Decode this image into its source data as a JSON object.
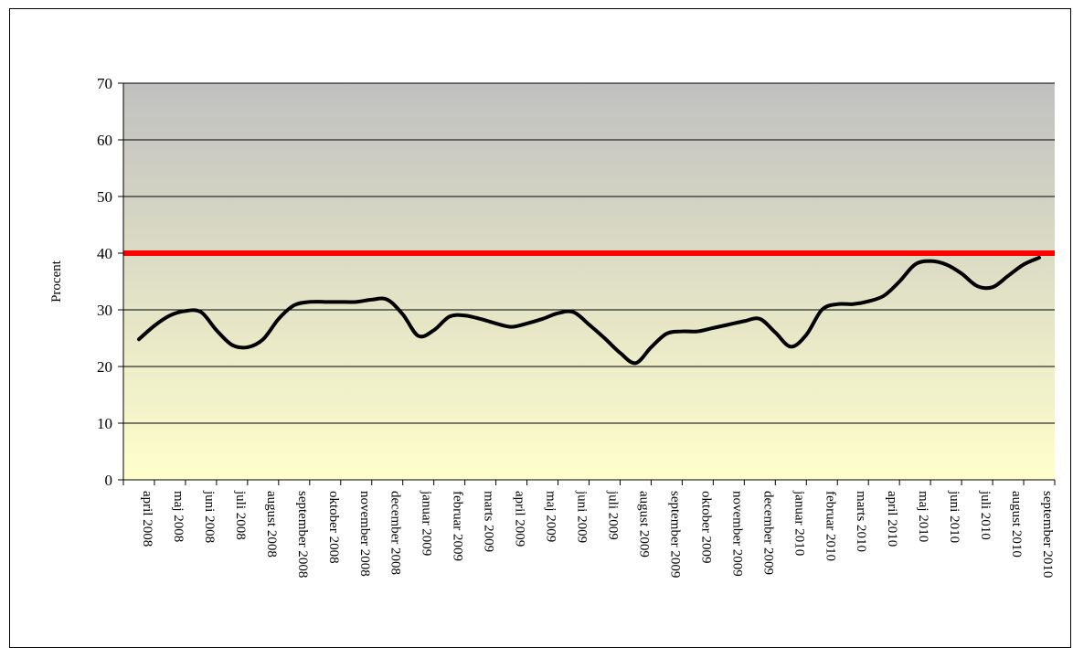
{
  "chart_data": {
    "type": "line",
    "title": "",
    "ylabel": "Procent",
    "xlabel": "",
    "ylim": [
      0,
      70
    ],
    "yticks": [
      0,
      10,
      20,
      30,
      40,
      50,
      60,
      70
    ],
    "grid": true,
    "categories": [
      "april 2008",
      "maj 2008",
      "juni 2008",
      "juli 2008",
      "august 2008",
      "september 2008",
      "oktober 2008",
      "november 2008",
      "december 2008",
      "januar 2009",
      "februar 2009",
      "marts 2009",
      "april 2009",
      "maj 2009",
      "juni 2009",
      "juli 2009",
      "august 2009",
      "september 2009",
      "oktober 2009",
      "november 2009",
      "december 2009",
      "januar 2010",
      "februar 2010",
      "marts 2010",
      "april 2010",
      "maj 2010",
      "juni 2010",
      "juli 2010",
      "august 2010",
      "september 2010"
    ],
    "series": [
      {
        "x": [
          0,
          0.5,
          1,
          1.5,
          2,
          2.5,
          3,
          3.5,
          4,
          4.5,
          5,
          5.5,
          6,
          6.5,
          7,
          7.5,
          8,
          8.5,
          9,
          9.5,
          10,
          10.5,
          11,
          11.5,
          12,
          12.5,
          13,
          13.5,
          14,
          14.5,
          15,
          15.5,
          16,
          16.5,
          17,
          17.5,
          18,
          18.5,
          19,
          19.5,
          20,
          20.5,
          21,
          21.5,
          22,
          22.5,
          23,
          23.5,
          24,
          24.5,
          25,
          25.5,
          26,
          26.5,
          27,
          27.5,
          28,
          28.5,
          29
        ],
        "values": [
          24.8,
          27.2,
          29.0,
          29.8,
          29.6,
          26.4,
          23.8,
          23.4,
          24.8,
          28.4,
          30.8,
          31.4,
          31.4,
          31.4,
          31.4,
          31.8,
          31.8,
          29.2,
          25.4,
          26.4,
          28.8,
          29.0,
          28.4,
          27.6,
          27.0,
          27.6,
          28.4,
          29.4,
          29.6,
          27.4,
          25.0,
          22.4,
          20.6,
          23.4,
          25.8,
          26.2,
          26.2,
          26.8,
          27.4,
          28.0,
          28.4,
          26.0,
          23.5,
          25.6,
          30.0,
          31.0,
          31.0,
          31.5,
          32.5,
          35.0,
          38.0,
          38.6,
          38.0,
          36.4,
          34.2,
          34.0,
          36.0,
          38.0,
          39.2
        ]
      }
    ],
    "reference_line": {
      "value": 40,
      "color": "#ff0000"
    },
    "colors": {
      "series": "#000000",
      "plot_top": "#c0c0c0",
      "plot_bottom": "#ffffcc"
    }
  }
}
